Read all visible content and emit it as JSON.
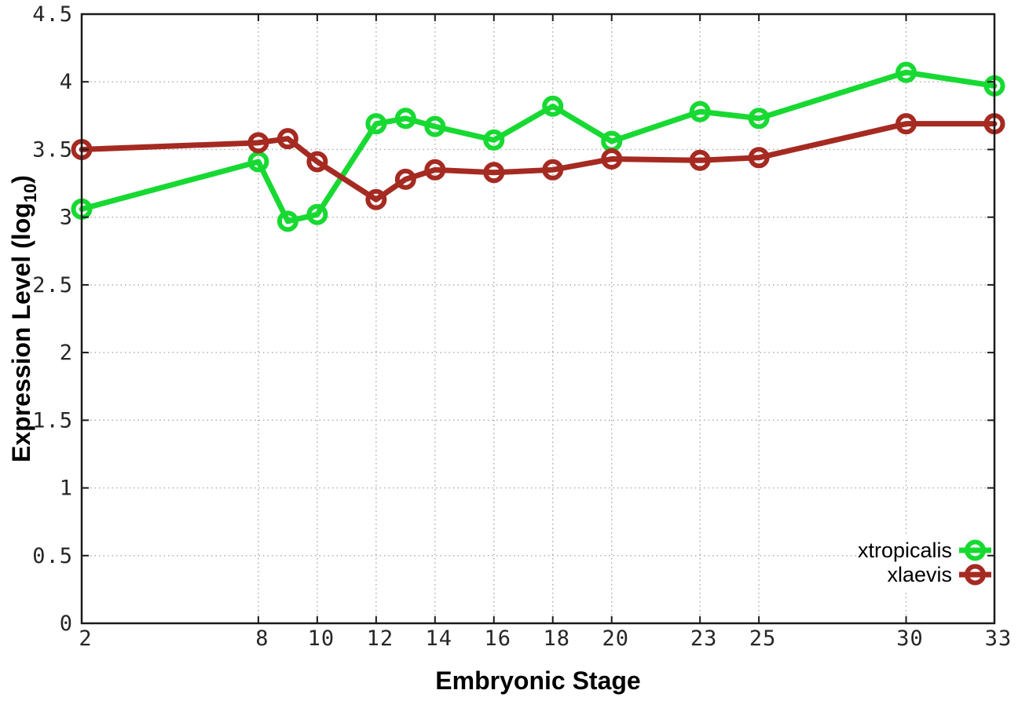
{
  "chart_data": {
    "type": "line",
    "title": "",
    "xlabel": "Embryonic Stage",
    "ylabel": "Expression Level (log10)",
    "ylabel_parts": {
      "main": "Expression Level (log",
      "sub": "10",
      "close": ")"
    },
    "x": [
      2,
      8,
      9,
      10,
      12,
      13,
      14,
      16,
      18,
      20,
      23,
      25,
      30,
      33
    ],
    "series": [
      {
        "name": "xtropicalis",
        "color": "#17d932",
        "values": [
          3.06,
          3.41,
          2.97,
          3.02,
          3.69,
          3.73,
          3.67,
          3.57,
          3.82,
          3.56,
          3.78,
          3.73,
          4.07,
          3.97
        ]
      },
      {
        "name": "xlaevis",
        "color": "#a52a21",
        "values": [
          3.5,
          3.55,
          3.58,
          3.41,
          3.13,
          3.28,
          3.35,
          3.33,
          3.35,
          3.43,
          3.42,
          3.44,
          3.69,
          3.69
        ]
      }
    ],
    "xlim": [
      2,
      33
    ],
    "ylim": [
      0,
      4.5
    ],
    "xticks": [
      2,
      8,
      10,
      12,
      14,
      16,
      18,
      20,
      23,
      25,
      30,
      33
    ],
    "yticks": [
      0,
      0.5,
      1,
      1.5,
      2,
      2.5,
      3,
      3.5,
      4,
      4.5
    ],
    "grid": true,
    "grid_style": "dotted",
    "legend_position": "bottom-right",
    "marker": "open-circle",
    "background_color": "#ffffff",
    "border_color": "#1a1a1a"
  }
}
